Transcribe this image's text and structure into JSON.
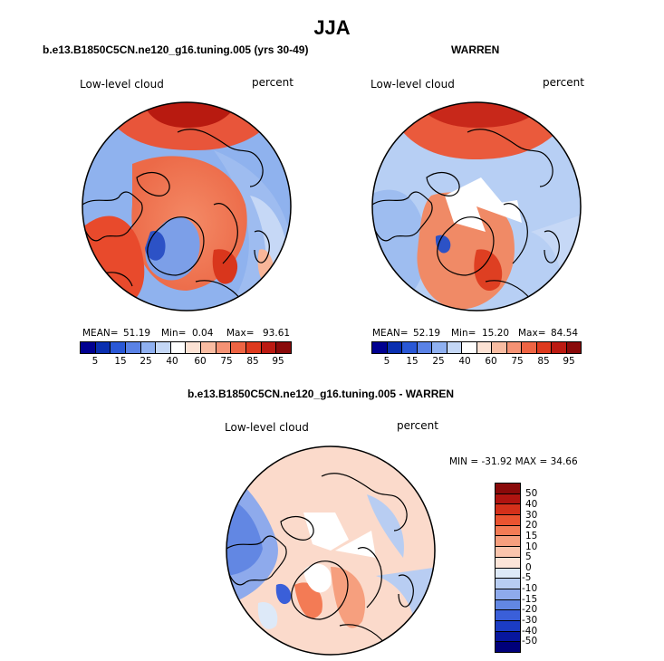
{
  "figure_title": "JJA",
  "chart_data": [
    {
      "type": "heatmap",
      "projection": "north polar stereographic",
      "title": "b.e13.B1850C5CN.ne120_g16.tuning.005 (yrs 30-49)",
      "variable": "Low-level cloud",
      "units": "percent",
      "stats": {
        "mean": "51.19",
        "min": "0.04",
        "max": "93.61",
        "mean_label": "MEAN=",
        "min_label": "Min=",
        "max_label": "Max="
      },
      "colorbar": {
        "labels": [
          "5",
          "15",
          "25",
          "40",
          "60",
          "75",
          "85",
          "95"
        ]
      }
    },
    {
      "type": "heatmap",
      "projection": "north polar stereographic",
      "title": "WARREN",
      "variable": "Low-level cloud",
      "units": "percent",
      "stats": {
        "mean": "52.19",
        "min": "15.20",
        "max": "84.54",
        "mean_label": "MEAN=",
        "min_label": "Min=",
        "max_label": "Max="
      },
      "colorbar": {
        "labels": [
          "5",
          "15",
          "25",
          "40",
          "60",
          "75",
          "85",
          "95"
        ]
      }
    },
    {
      "type": "heatmap",
      "projection": "north polar stereographic",
      "title": "b.e13.B1850C5CN.ne120_g16.tuning.005 - WARREN",
      "variable": "Low-level cloud",
      "units": "percent",
      "stats_text": "MIN = -31.92 MAX =  34.66",
      "colorbar": {
        "labels": [
          "50",
          "40",
          "30",
          "20",
          "15",
          "10",
          "5",
          "0",
          "-5",
          "-10",
          "-15",
          "-20",
          "-30",
          "-40",
          "-50"
        ]
      }
    }
  ],
  "colors": {
    "abs_scale": [
      "#000090",
      "#0a2fb0",
      "#2a58d6",
      "#5a82e6",
      "#8fb0f0",
      "#c4d7f6",
      "#ffffff",
      "#fce2d4",
      "#f9bca2",
      "#f59274",
      "#ee6443",
      "#de3a1e",
      "#bb1a12",
      "#8a0a0a"
    ],
    "diff_scale": [
      "#8a0a0a",
      "#b01410",
      "#d4301a",
      "#ea5330",
      "#f37b55",
      "#f69f7e",
      "#fac5ad",
      "#fde5d8",
      "#dde9f8",
      "#b8cdf2",
      "#8eaaec",
      "#6287e3",
      "#3a5fd9",
      "#1b3cc4",
      "#07179e",
      "#00007a"
    ]
  }
}
